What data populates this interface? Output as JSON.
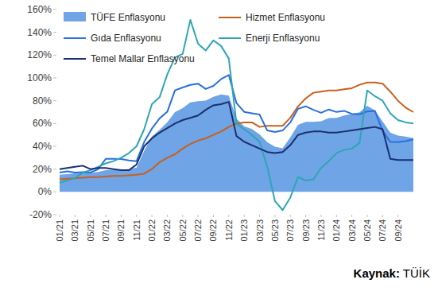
{
  "chart_data": {
    "type": "line",
    "source": "Kaynak: TÜİK",
    "categories": [
      "01/21",
      null,
      "03/21",
      null,
      "05/21",
      null,
      "07/21",
      null,
      "09/21",
      null,
      "11/21",
      null,
      "01/22",
      null,
      "03/22",
      null,
      "05/22",
      null,
      "07/22",
      null,
      "09/22",
      null,
      "11/22",
      null,
      "01/23",
      null,
      "03/23",
      null,
      "05/23",
      null,
      "07/23",
      null,
      "09/23",
      null,
      "11/23",
      null,
      "01/24",
      null,
      "03/24",
      null,
      "05/24",
      null,
      "07/24",
      null,
      "09/24",
      null,
      null
    ],
    "series": [
      {
        "name": "TÜFE Enflasyonu",
        "type": "area",
        "color": "#6fa4e6",
        "values": [
          15.0,
          15.6,
          16.2,
          17.1,
          16.6,
          17.5,
          19.0,
          19.3,
          19.6,
          19.9,
          21.3,
          36.1,
          48.7,
          54.4,
          61.1,
          70.0,
          73.5,
          78.6,
          79.6,
          80.2,
          83.5,
          85.5,
          84.4,
          64.3,
          57.7,
          55.2,
          50.5,
          43.7,
          39.6,
          38.2,
          47.8,
          58.9,
          61.5,
          61.4,
          62.0,
          64.8,
          64.9,
          67.1,
          68.5,
          69.8,
          75.5,
          71.6,
          61.8,
          52.0,
          49.4,
          48.6,
          47.1
        ]
      },
      {
        "name": "Hizmet Enflasyonu",
        "type": "line",
        "color": "#c8601c",
        "values": [
          11,
          11.5,
          12,
          12.5,
          13,
          13,
          13.5,
          14,
          14,
          14.5,
          15,
          16,
          20,
          26,
          30,
          33,
          38,
          42,
          45,
          47,
          50,
          53,
          57,
          60,
          61,
          61,
          57,
          58,
          58,
          58,
          65,
          75,
          82,
          87,
          88,
          89,
          89,
          90,
          91,
          94,
          96,
          96,
          95,
          88,
          80,
          74,
          70
        ]
      },
      {
        "name": "Gıda Enflasyonu",
        "type": "line",
        "color": "#2a6fe0",
        "values": [
          17,
          18,
          17,
          17.3,
          17,
          19.9,
          29,
          29,
          28.8,
          27.6,
          27,
          43.8,
          55.6,
          64.5,
          70.3,
          89.1,
          91.6,
          93.9,
          95,
          90.3,
          93,
          99,
          102.6,
          77.9,
          70.2,
          69,
          67.9,
          53.9,
          52.5,
          53.9,
          61,
          72.9,
          75.1,
          72,
          69.4,
          72.3,
          70.1,
          71.1,
          68.5,
          68.1,
          70.6,
          71.1,
          53.5,
          43.8,
          43.7,
          44.6,
          46.1
        ]
      },
      {
        "name": "Enerji Enflasyonu",
        "type": "line",
        "color": "#2ea6b5",
        "values": [
          8,
          10,
          12,
          17,
          19,
          22,
          25,
          27,
          30,
          34,
          40,
          55,
          77,
          83,
          103,
          118,
          121,
          151,
          130,
          124,
          133,
          128,
          117,
          60,
          55,
          50,
          44,
          22,
          -8,
          -16,
          -5,
          13,
          10,
          11,
          21,
          27,
          34,
          37,
          38,
          43,
          89,
          84,
          80,
          69,
          63,
          61,
          60
        ]
      },
      {
        "name": "Temel Mallar Enflasyonu",
        "type": "line",
        "color": "#1b2f6e",
        "values": [
          20,
          21,
          22,
          23,
          20,
          21,
          21,
          20,
          19,
          19,
          24,
          40,
          47,
          52,
          56,
          60,
          63,
          65,
          67,
          72,
          76,
          77,
          79,
          49,
          44,
          41,
          38,
          35,
          34,
          35,
          41,
          50,
          52,
          53,
          53,
          52,
          52,
          53,
          54,
          55,
          56,
          57,
          55,
          29,
          28,
          28,
          28
        ]
      }
    ],
    "ylim": [
      -20,
      160
    ],
    "yticks": [
      {
        "value": -20,
        "label": "-20%"
      },
      {
        "value": 0,
        "label": "0%"
      },
      {
        "value": 20,
        "label": "20%"
      },
      {
        "value": 40,
        "label": "40%"
      },
      {
        "value": 60,
        "label": "60%"
      },
      {
        "value": 80,
        "label": "80%"
      },
      {
        "value": 100,
        "label": "100%"
      },
      {
        "value": 120,
        "label": "120%"
      },
      {
        "value": 140,
        "label": "140%"
      },
      {
        "value": 160,
        "label": "160%"
      }
    ],
    "grid": false,
    "legend": "upper left"
  }
}
